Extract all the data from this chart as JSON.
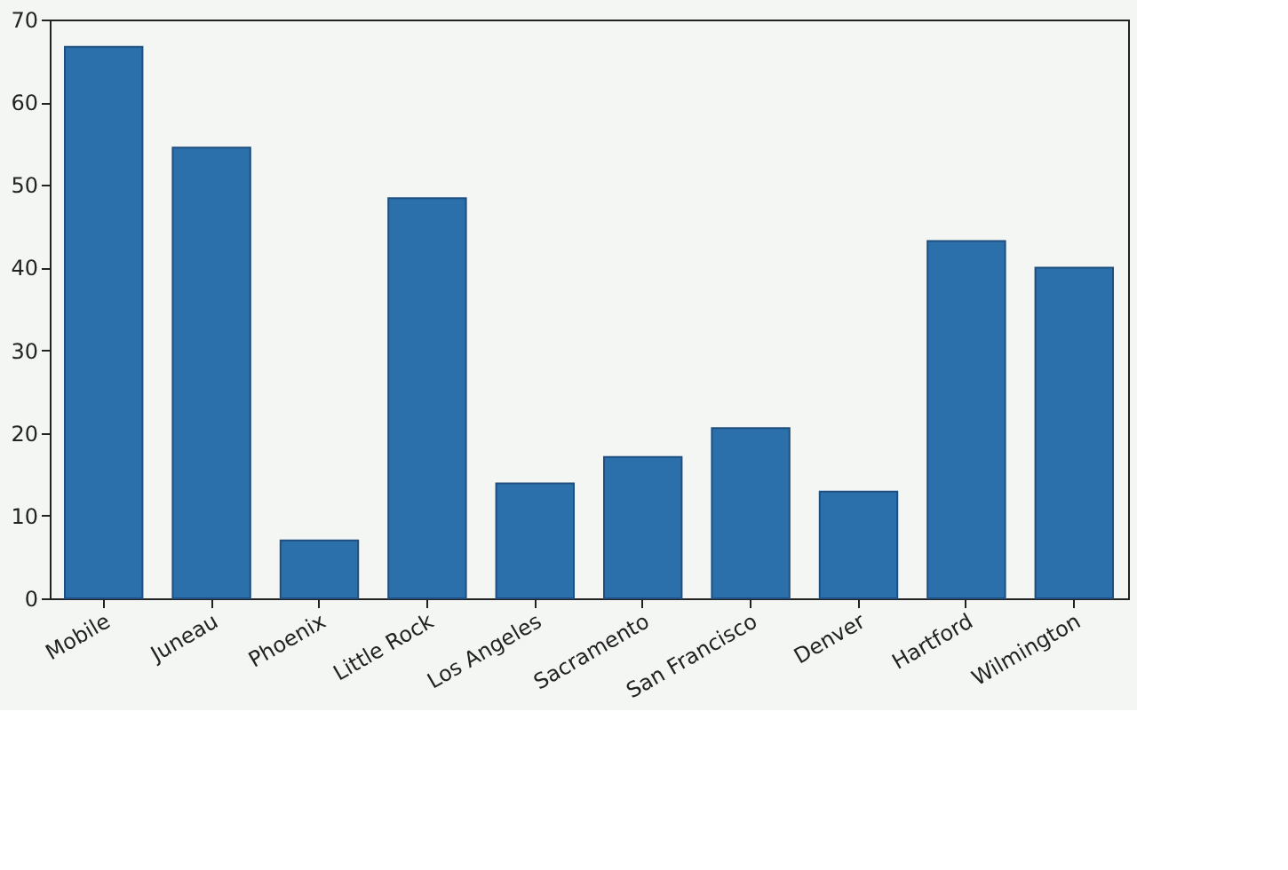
{
  "chart_data": {
    "type": "bar",
    "categories": [
      "Mobile",
      "Juneau",
      "Phoenix",
      "Little Rock",
      "Los Angeles",
      "Sacramento",
      "San Francisco",
      "Denver",
      "Hartford",
      "Wilmington"
    ],
    "values": [
      66.7,
      54.5,
      7.0,
      48.4,
      13.9,
      17.1,
      20.6,
      12.9,
      43.2,
      40.0
    ],
    "color": "#2b70ab",
    "ylim": [
      0,
      70
    ],
    "yticks": [
      0,
      10,
      20,
      30,
      40,
      50,
      60,
      70
    ],
    "grid": false
  }
}
